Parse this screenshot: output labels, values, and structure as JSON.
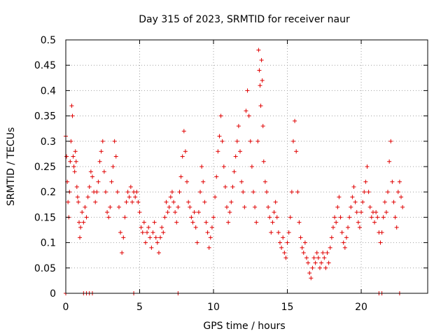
{
  "chart_data": {
    "type": "scatter",
    "title": "Day 315 of 2023, SRMTID for receiver naur",
    "xlabel": "GPS time / hours",
    "ylabel": "SRMTID / TECUs",
    "xlim": [
      0,
      24.5
    ],
    "ylim": [
      0,
      0.5
    ],
    "xticks": [
      0,
      5,
      10,
      15,
      20
    ],
    "xtick_labels": [
      "0",
      "5",
      "10",
      "15",
      "20"
    ],
    "yticks": [
      0,
      0.05,
      0.1,
      0.15,
      0.2,
      0.25,
      0.3,
      0.35,
      0.4,
      0.45,
      0.5
    ],
    "ytick_labels": [
      "0",
      "0.05",
      "0.1",
      "0.15",
      "0.2",
      "0.25",
      "0.3",
      "0.35",
      "0.4",
      "0.45",
      "0.5"
    ],
    "grid": true,
    "marker": "+",
    "color": "#e00000",
    "series": [
      {
        "name": "SRMTID",
        "points": [
          [
            0.0,
            0.31
          ],
          [
            0.05,
            0.27
          ],
          [
            0.1,
            0.22
          ],
          [
            0.15,
            0.18
          ],
          [
            0.2,
            0.15
          ],
          [
            0.25,
            0.2
          ],
          [
            0.3,
            0.26
          ],
          [
            0.35,
            0.3
          ],
          [
            0.4,
            0.37
          ],
          [
            0.45,
            0.35
          ],
          [
            0.5,
            0.27
          ],
          [
            0.55,
            0.25
          ],
          [
            0.6,
            0.24
          ],
          [
            0.65,
            0.28
          ],
          [
            0.7,
            0.26
          ],
          [
            0.75,
            0.21
          ],
          [
            0.8,
            0.19
          ],
          [
            0.85,
            0.18
          ],
          [
            0.9,
            0.14
          ],
          [
            0.95,
            0.11
          ],
          [
            1.0,
            0.13
          ],
          [
            1.1,
            0.16
          ],
          [
            1.2,
            0.14
          ],
          [
            1.3,
            0.17
          ],
          [
            1.4,
            0.15
          ],
          [
            1.5,
            0.19
          ],
          [
            1.6,
            0.21
          ],
          [
            1.7,
            0.24
          ],
          [
            1.8,
            0.23
          ],
          [
            1.9,
            0.2
          ],
          [
            2.0,
            0.18
          ],
          [
            2.1,
            0.2
          ],
          [
            2.2,
            0.22
          ],
          [
            2.3,
            0.26
          ],
          [
            2.4,
            0.28
          ],
          [
            2.5,
            0.3
          ],
          [
            2.6,
            0.24
          ],
          [
            2.7,
            0.2
          ],
          [
            2.8,
            0.16
          ],
          [
            2.9,
            0.15
          ],
          [
            3.0,
            0.17
          ],
          [
            3.1,
            0.22
          ],
          [
            3.2,
            0.25
          ],
          [
            3.3,
            0.3
          ],
          [
            3.4,
            0.27
          ],
          [
            3.5,
            0.2
          ],
          [
            3.6,
            0.17
          ],
          [
            3.7,
            0.12
          ],
          [
            3.8,
            0.08
          ],
          [
            3.9,
            0.11
          ],
          [
            4.0,
            0.15
          ],
          [
            4.1,
            0.18
          ],
          [
            4.2,
            0.2
          ],
          [
            4.3,
            0.19
          ],
          [
            4.4,
            0.21
          ],
          [
            4.5,
            0.18
          ],
          [
            4.6,
            0.2
          ],
          [
            4.7,
            0.19
          ],
          [
            4.8,
            0.2
          ],
          [
            4.9,
            0.18
          ],
          [
            5.0,
            0.16
          ],
          [
            5.1,
            0.13
          ],
          [
            5.2,
            0.12
          ],
          [
            5.3,
            0.14
          ],
          [
            5.4,
            0.1
          ],
          [
            5.5,
            0.12
          ],
          [
            5.6,
            0.13
          ],
          [
            5.7,
            0.11
          ],
          [
            5.8,
            0.09
          ],
          [
            5.9,
            0.12
          ],
          [
            6.0,
            0.14
          ],
          [
            6.1,
            0.11
          ],
          [
            6.2,
            0.1
          ],
          [
            6.3,
            0.08
          ],
          [
            6.4,
            0.11
          ],
          [
            6.5,
            0.13
          ],
          [
            6.6,
            0.12
          ],
          [
            6.7,
            0.15
          ],
          [
            6.8,
            0.18
          ],
          [
            6.9,
            0.16
          ],
          [
            7.0,
            0.17
          ],
          [
            7.1,
            0.19
          ],
          [
            7.2,
            0.2
          ],
          [
            7.3,
            0.18
          ],
          [
            7.4,
            0.16
          ],
          [
            7.5,
            0.14
          ],
          [
            7.6,
            0.17
          ],
          [
            7.7,
            0.2
          ],
          [
            7.8,
            0.23
          ],
          [
            7.9,
            0.27
          ],
          [
            8.0,
            0.32
          ],
          [
            8.1,
            0.28
          ],
          [
            8.2,
            0.22
          ],
          [
            8.3,
            0.18
          ],
          [
            8.4,
            0.17
          ],
          [
            8.5,
            0.15
          ],
          [
            8.6,
            0.14
          ],
          [
            8.7,
            0.16
          ],
          [
            8.8,
            0.13
          ],
          [
            8.9,
            0.1
          ],
          [
            9.0,
            0.16
          ],
          [
            9.1,
            0.2
          ],
          [
            9.2,
            0.25
          ],
          [
            9.3,
            0.22
          ],
          [
            9.4,
            0.18
          ],
          [
            9.5,
            0.14
          ],
          [
            9.6,
            0.12
          ],
          [
            9.7,
            0.09
          ],
          [
            9.8,
            0.11
          ],
          [
            9.9,
            0.13
          ],
          [
            10.0,
            0.15
          ],
          [
            10.1,
            0.19
          ],
          [
            10.2,
            0.23
          ],
          [
            10.3,
            0.28
          ],
          [
            10.4,
            0.31
          ],
          [
            10.5,
            0.35
          ],
          [
            10.6,
            0.3
          ],
          [
            10.7,
            0.25
          ],
          [
            10.8,
            0.21
          ],
          [
            10.9,
            0.17
          ],
          [
            11.0,
            0.14
          ],
          [
            11.1,
            0.16
          ],
          [
            11.2,
            0.18
          ],
          [
            11.3,
            0.21
          ],
          [
            11.4,
            0.24
          ],
          [
            11.5,
            0.27
          ],
          [
            11.6,
            0.3
          ],
          [
            11.7,
            0.33
          ],
          [
            11.8,
            0.28
          ],
          [
            11.9,
            0.22
          ],
          [
            12.0,
            0.2
          ],
          [
            12.1,
            0.17
          ],
          [
            12.2,
            0.36
          ],
          [
            12.3,
            0.4
          ],
          [
            12.4,
            0.35
          ],
          [
            12.5,
            0.3
          ],
          [
            12.6,
            0.25
          ],
          [
            12.7,
            0.2
          ],
          [
            12.8,
            0.17
          ],
          [
            12.9,
            0.14
          ],
          [
            13.0,
            0.3
          ],
          [
            13.05,
            0.48
          ],
          [
            13.1,
            0.44
          ],
          [
            13.15,
            0.41
          ],
          [
            13.2,
            0.37
          ],
          [
            13.25,
            0.46
          ],
          [
            13.3,
            0.42
          ],
          [
            13.35,
            0.33
          ],
          [
            13.4,
            0.26
          ],
          [
            13.5,
            0.22
          ],
          [
            13.6,
            0.2
          ],
          [
            13.7,
            0.17
          ],
          [
            13.8,
            0.15
          ],
          [
            13.9,
            0.12
          ],
          [
            14.0,
            0.14
          ],
          [
            14.1,
            0.16
          ],
          [
            14.2,
            0.18
          ],
          [
            14.3,
            0.15
          ],
          [
            14.4,
            0.12
          ],
          [
            14.5,
            0.1
          ],
          [
            14.6,
            0.09
          ],
          [
            14.7,
            0.11
          ],
          [
            14.8,
            0.08
          ],
          [
            14.9,
            0.07
          ],
          [
            15.0,
            0.1
          ],
          [
            15.1,
            0.12
          ],
          [
            15.2,
            0.15
          ],
          [
            15.3,
            0.2
          ],
          [
            15.4,
            0.3
          ],
          [
            15.5,
            0.34
          ],
          [
            15.6,
            0.28
          ],
          [
            15.7,
            0.2
          ],
          [
            15.8,
            0.14
          ],
          [
            15.9,
            0.11
          ],
          [
            16.0,
            0.09
          ],
          [
            16.1,
            0.08
          ],
          [
            16.2,
            0.1
          ],
          [
            16.3,
            0.07
          ],
          [
            16.4,
            0.06
          ],
          [
            16.5,
            0.04
          ],
          [
            16.6,
            0.03
          ],
          [
            16.7,
            0.05
          ],
          [
            16.8,
            0.07
          ],
          [
            16.9,
            0.06
          ],
          [
            17.0,
            0.08
          ],
          [
            17.1,
            0.07
          ],
          [
            17.2,
            0.05
          ],
          [
            17.3,
            0.06
          ],
          [
            17.4,
            0.08
          ],
          [
            17.5,
            0.07
          ],
          [
            17.6,
            0.05
          ],
          [
            17.7,
            0.08
          ],
          [
            17.8,
            0.06
          ],
          [
            17.9,
            0.09
          ],
          [
            18.0,
            0.11
          ],
          [
            18.1,
            0.13
          ],
          [
            18.2,
            0.15
          ],
          [
            18.3,
            0.14
          ],
          [
            18.4,
            0.17
          ],
          [
            18.5,
            0.19
          ],
          [
            18.6,
            0.15
          ],
          [
            18.7,
            0.12
          ],
          [
            18.8,
            0.1
          ],
          [
            18.9,
            0.09
          ],
          [
            19.0,
            0.11
          ],
          [
            19.1,
            0.13
          ],
          [
            19.2,
            0.15
          ],
          [
            19.3,
            0.17
          ],
          [
            19.4,
            0.19
          ],
          [
            19.5,
            0.21
          ],
          [
            19.6,
            0.18
          ],
          [
            19.7,
            0.16
          ],
          [
            19.8,
            0.14
          ],
          [
            19.9,
            0.13
          ],
          [
            20.0,
            0.16
          ],
          [
            20.1,
            0.18
          ],
          [
            20.2,
            0.2
          ],
          [
            20.3,
            0.22
          ],
          [
            20.4,
            0.25
          ],
          [
            20.5,
            0.2
          ],
          [
            20.6,
            0.17
          ],
          [
            20.7,
            0.15
          ],
          [
            20.8,
            0.16
          ],
          [
            20.9,
            0.14
          ],
          [
            21.0,
            0.16
          ],
          [
            21.1,
            0.15
          ],
          [
            21.2,
            0.12
          ],
          [
            21.3,
            0.1
          ],
          [
            21.4,
            0.12
          ],
          [
            21.5,
            0.15
          ],
          [
            21.6,
            0.18
          ],
          [
            21.7,
            0.16
          ],
          [
            21.8,
            0.2
          ],
          [
            21.9,
            0.26
          ],
          [
            22.0,
            0.3
          ],
          [
            22.1,
            0.22
          ],
          [
            22.2,
            0.18
          ],
          [
            22.3,
            0.15
          ],
          [
            22.4,
            0.13
          ],
          [
            22.5,
            0.2
          ],
          [
            22.6,
            0.22
          ],
          [
            22.7,
            0.19
          ],
          [
            22.8,
            0.17
          ]
        ]
      }
    ],
    "zero_markers": [
      0.0,
      1.2,
      1.4,
      1.6,
      1.8,
      4.6,
      7.6,
      21.2,
      21.4,
      22.6
    ]
  }
}
